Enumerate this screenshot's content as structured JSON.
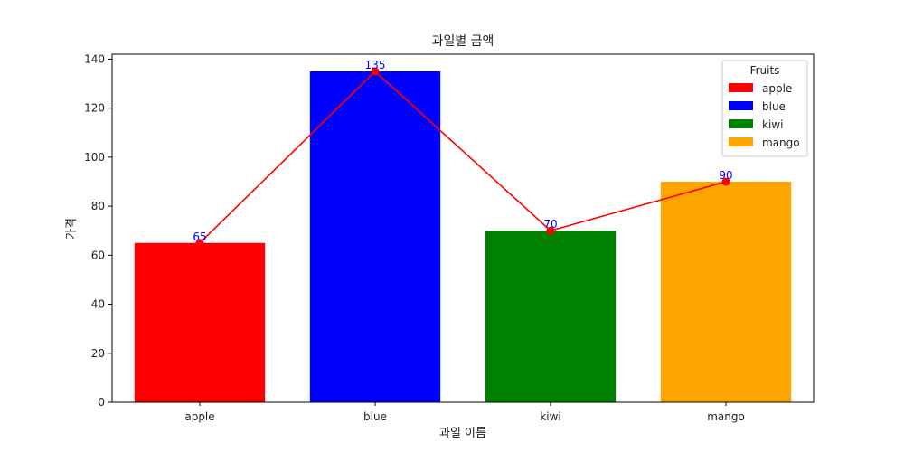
{
  "chart_data": {
    "type": "bar",
    "title": "과일별 금액",
    "xlabel": "과일 이름",
    "ylabel": "가격",
    "categories": [
      "apple",
      "blue",
      "kiwi",
      "mango"
    ],
    "values": [
      65,
      135,
      70,
      90
    ],
    "bar_colors": [
      "#ff0000",
      "#0000ff",
      "#008000",
      "#ffa500"
    ],
    "data_labels": [
      "65",
      "135",
      "70",
      "90"
    ],
    "ylim": [
      0,
      140
    ],
    "yticks": [
      0,
      20,
      40,
      60,
      80,
      100,
      120,
      140
    ],
    "ytick_labels": [
      "0",
      "20",
      "40",
      "60",
      "80",
      "100",
      "120",
      "140"
    ],
    "grid": false,
    "line_overlay": {
      "color": "#ff0000",
      "marker": "circle",
      "values": [
        65,
        135,
        70,
        90
      ]
    },
    "data_label_color": "#0000ff",
    "legend": {
      "title": "Fruits",
      "position": "top-right",
      "entries": [
        {
          "label": "apple",
          "color": "#ff0000"
        },
        {
          "label": "blue",
          "color": "#0000ff"
        },
        {
          "label": "kiwi",
          "color": "#008000"
        },
        {
          "label": "mango",
          "color": "#ffa500"
        }
      ]
    }
  }
}
